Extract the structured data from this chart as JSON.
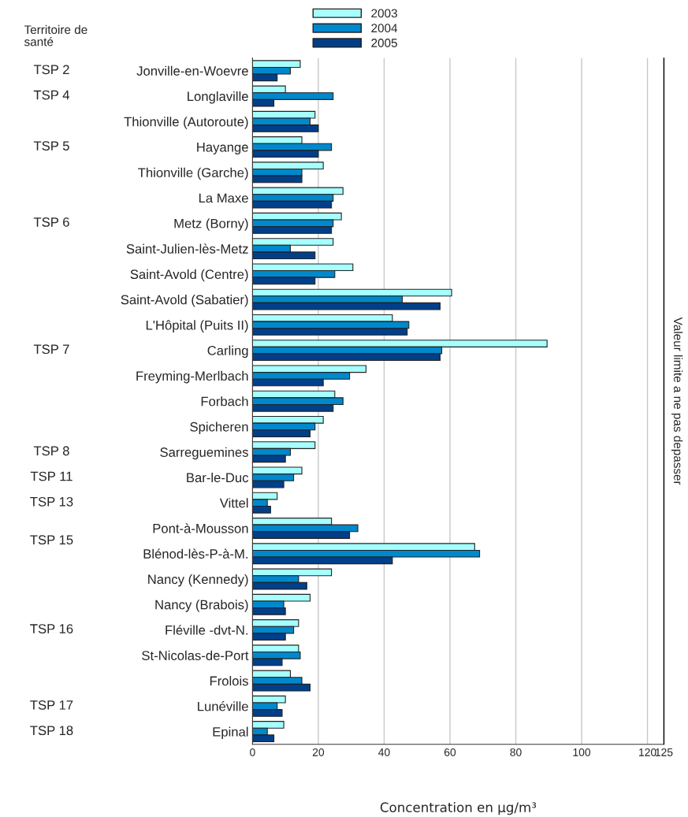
{
  "chart_data": {
    "type": "bar",
    "orientation": "horizontal",
    "categories": [
      "Jonville-en-Woevre",
      "Longlaville",
      "Thionville (Autoroute)",
      "Hayange",
      "Thionville (Garche)",
      "La Maxe",
      "Metz (Borny)",
      "Saint-Julien-lès-Metz",
      "Saint-Avold (Centre)",
      "Saint-Avold (Sabatier)",
      "L'Hôpital (Puits II)",
      "Carling",
      "Freyming-Merlbach",
      "Forbach",
      "Spicheren",
      "Sarreguemines",
      "Bar-le-Duc",
      "Vittel",
      "Pont-à-Mousson",
      "Blénod-lès-P-à-M.",
      "Nancy (Kennedy)",
      "Nancy (Brabois)",
      "Fléville -dvt-N.",
      "St-Nicolas-de-Port",
      "Frolois",
      "Lunéville",
      "Epinal"
    ],
    "series": [
      {
        "name": "2003",
        "color": "#a6ffff",
        "values": [
          14.5,
          10,
          19,
          15,
          21.5,
          27.5,
          27,
          24.5,
          30.5,
          60.5,
          42.5,
          89.5,
          34.5,
          25,
          21.5,
          19,
          15,
          7.5,
          24,
          67.5,
          24,
          17.5,
          14,
          14,
          11.5,
          10,
          9.5
        ]
      },
      {
        "name": "2004",
        "color": "#0088cc",
        "values": [
          11.5,
          24.5,
          17.5,
          24,
          15,
          24.5,
          24.5,
          11.5,
          25,
          45.5,
          47.5,
          57.5,
          29.5,
          27.5,
          19,
          11.5,
          12.5,
          4.5,
          32,
          69,
          14,
          9.5,
          12.5,
          14.5,
          15,
          7.5,
          4.5
        ]
      },
      {
        "name": "2005",
        "color": "#003f8a",
        "values": [
          7.5,
          6.5,
          20,
          20,
          15,
          24,
          24,
          19,
          19,
          57,
          47,
          57,
          21.5,
          24.5,
          17.5,
          10,
          9.5,
          5.5,
          29.5,
          42.5,
          16.5,
          10,
          10,
          9,
          17.5,
          9,
          6.5
        ]
      }
    ],
    "xlim": [
      0,
      125
    ],
    "xticks": [
      0,
      20,
      40,
      60,
      80,
      100,
      120,
      125
    ],
    "grid": "x",
    "legend": "top",
    "xlabel": "Concentration en µg/m³",
    "ref_lines": [
      {
        "axis": "x",
        "value": 125,
        "label": "Valeur limite a ne pas depasser",
        "color": "#000000"
      }
    ],
    "annotations": [
      "Territoire de\nsanté",
      "TSP 2",
      "TSP 4",
      "TSP 5",
      "TSP 6",
      "TSP 7",
      "TSP 8",
      "TSP 11",
      "TSP 13",
      "TSP 15",
      "TSP 16",
      "TSP 17",
      "TSP 18"
    ]
  }
}
